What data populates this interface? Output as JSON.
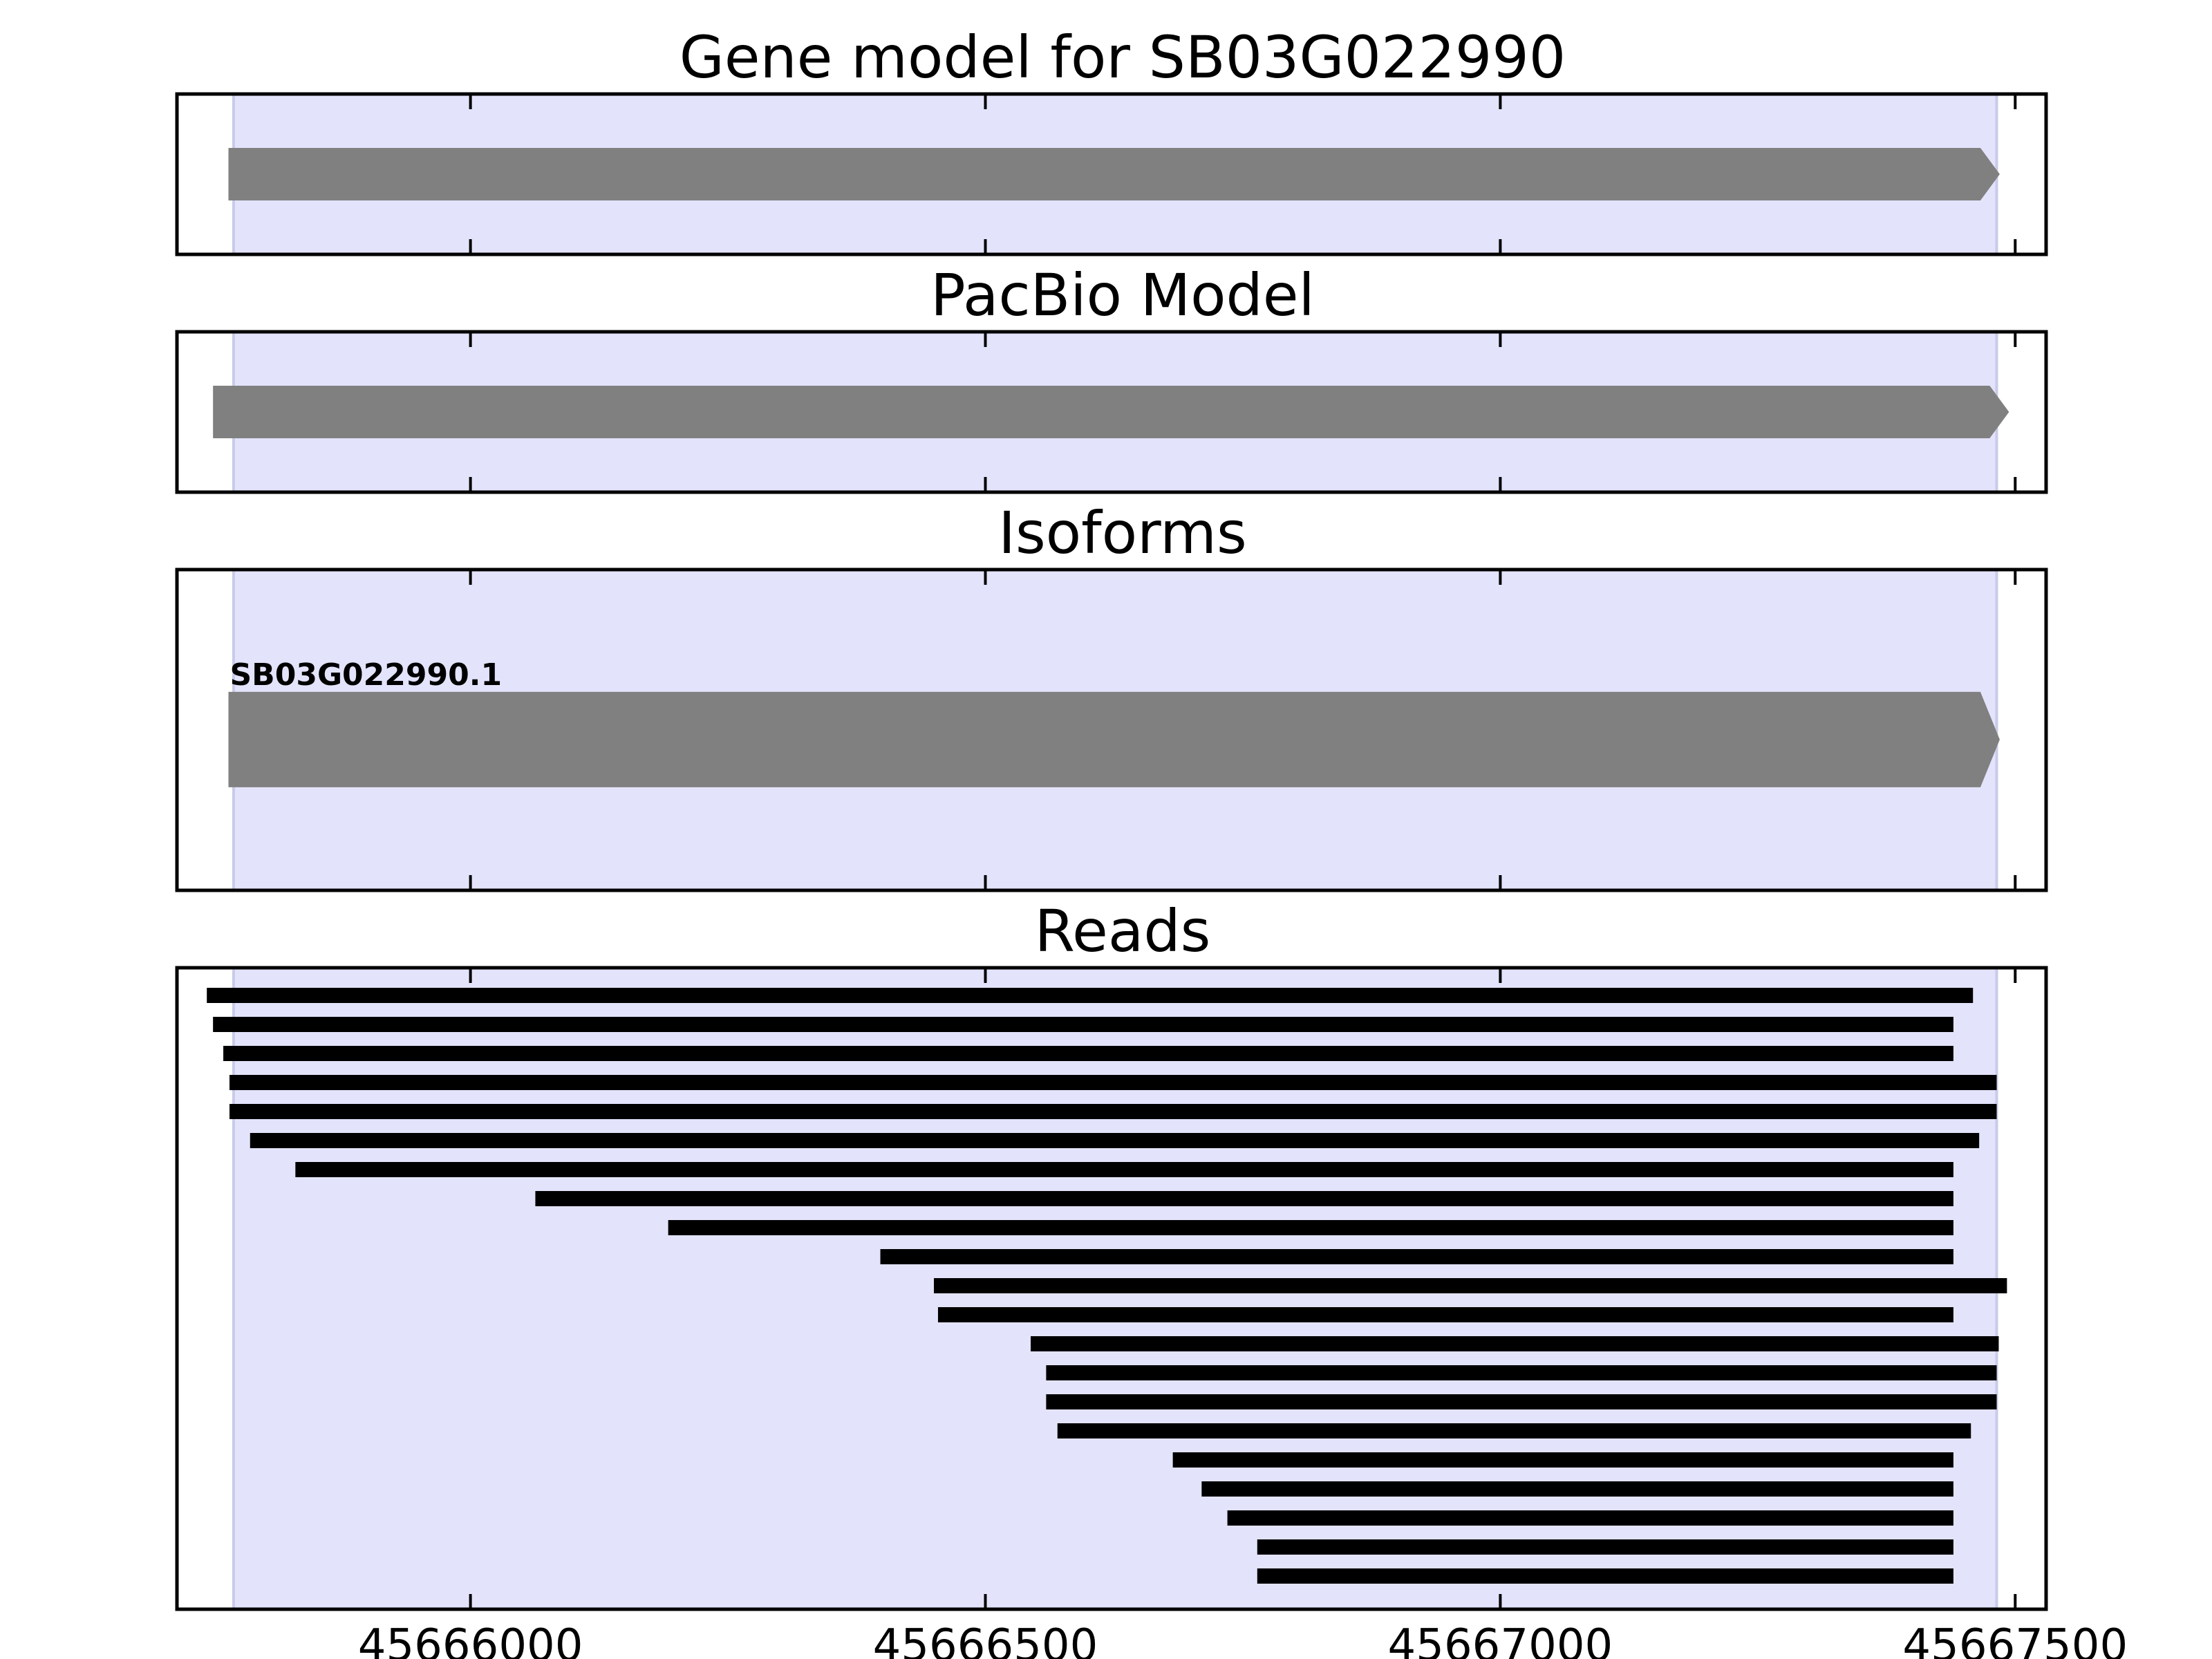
{
  "chart_data": {
    "type": "gene-track",
    "xlim": [
      45665715,
      45667530
    ],
    "x_ticks": [
      45666000,
      45666500,
      45667000,
      45667500
    ],
    "x_tick_labels": [
      "45666000",
      "45666500",
      "45667000",
      "45667500"
    ],
    "highlight_region": [
      45665770,
      45667482
    ],
    "colors": {
      "highlight": "#e3e3fc",
      "feature": "#808080",
      "read": "#000000",
      "frame": "#000000"
    },
    "panels": [
      {
        "id": "gene-model",
        "title": "Gene model for SB03G022990",
        "features": [
          {
            "start": 45665765,
            "end": 45667485,
            "strand": "+"
          }
        ]
      },
      {
        "id": "pacbio-model",
        "title": "PacBio Model",
        "features": [
          {
            "start": 45665750,
            "end": 45667494,
            "strand": "+"
          }
        ]
      },
      {
        "id": "isoforms",
        "title": "Isoforms",
        "features": [
          {
            "label": "SB03G022990.1",
            "start": 45665765,
            "end": 45667485,
            "strand": "+"
          }
        ]
      },
      {
        "id": "reads",
        "title": "Reads",
        "reads": [
          [
            45665744,
            45667459
          ],
          [
            45665750,
            45667440
          ],
          [
            45665760,
            45667440
          ],
          [
            45665766,
            45667482
          ],
          [
            45665766,
            45667482
          ],
          [
            45665786,
            45667465
          ],
          [
            45665830,
            45667440
          ],
          [
            45666063,
            45667440
          ],
          [
            45666192,
            45667440
          ],
          [
            45666398,
            45667440
          ],
          [
            45666450,
            45667492
          ],
          [
            45666454,
            45667440
          ],
          [
            45666544,
            45667484
          ],
          [
            45666559,
            45667482
          ],
          [
            45666559,
            45667482
          ],
          [
            45666570,
            45667457
          ],
          [
            45666682,
            45667440
          ],
          [
            45666710,
            45667440
          ],
          [
            45666735,
            45667440
          ],
          [
            45666764,
            45667440
          ],
          [
            45666764,
            45667440
          ]
        ]
      }
    ]
  }
}
